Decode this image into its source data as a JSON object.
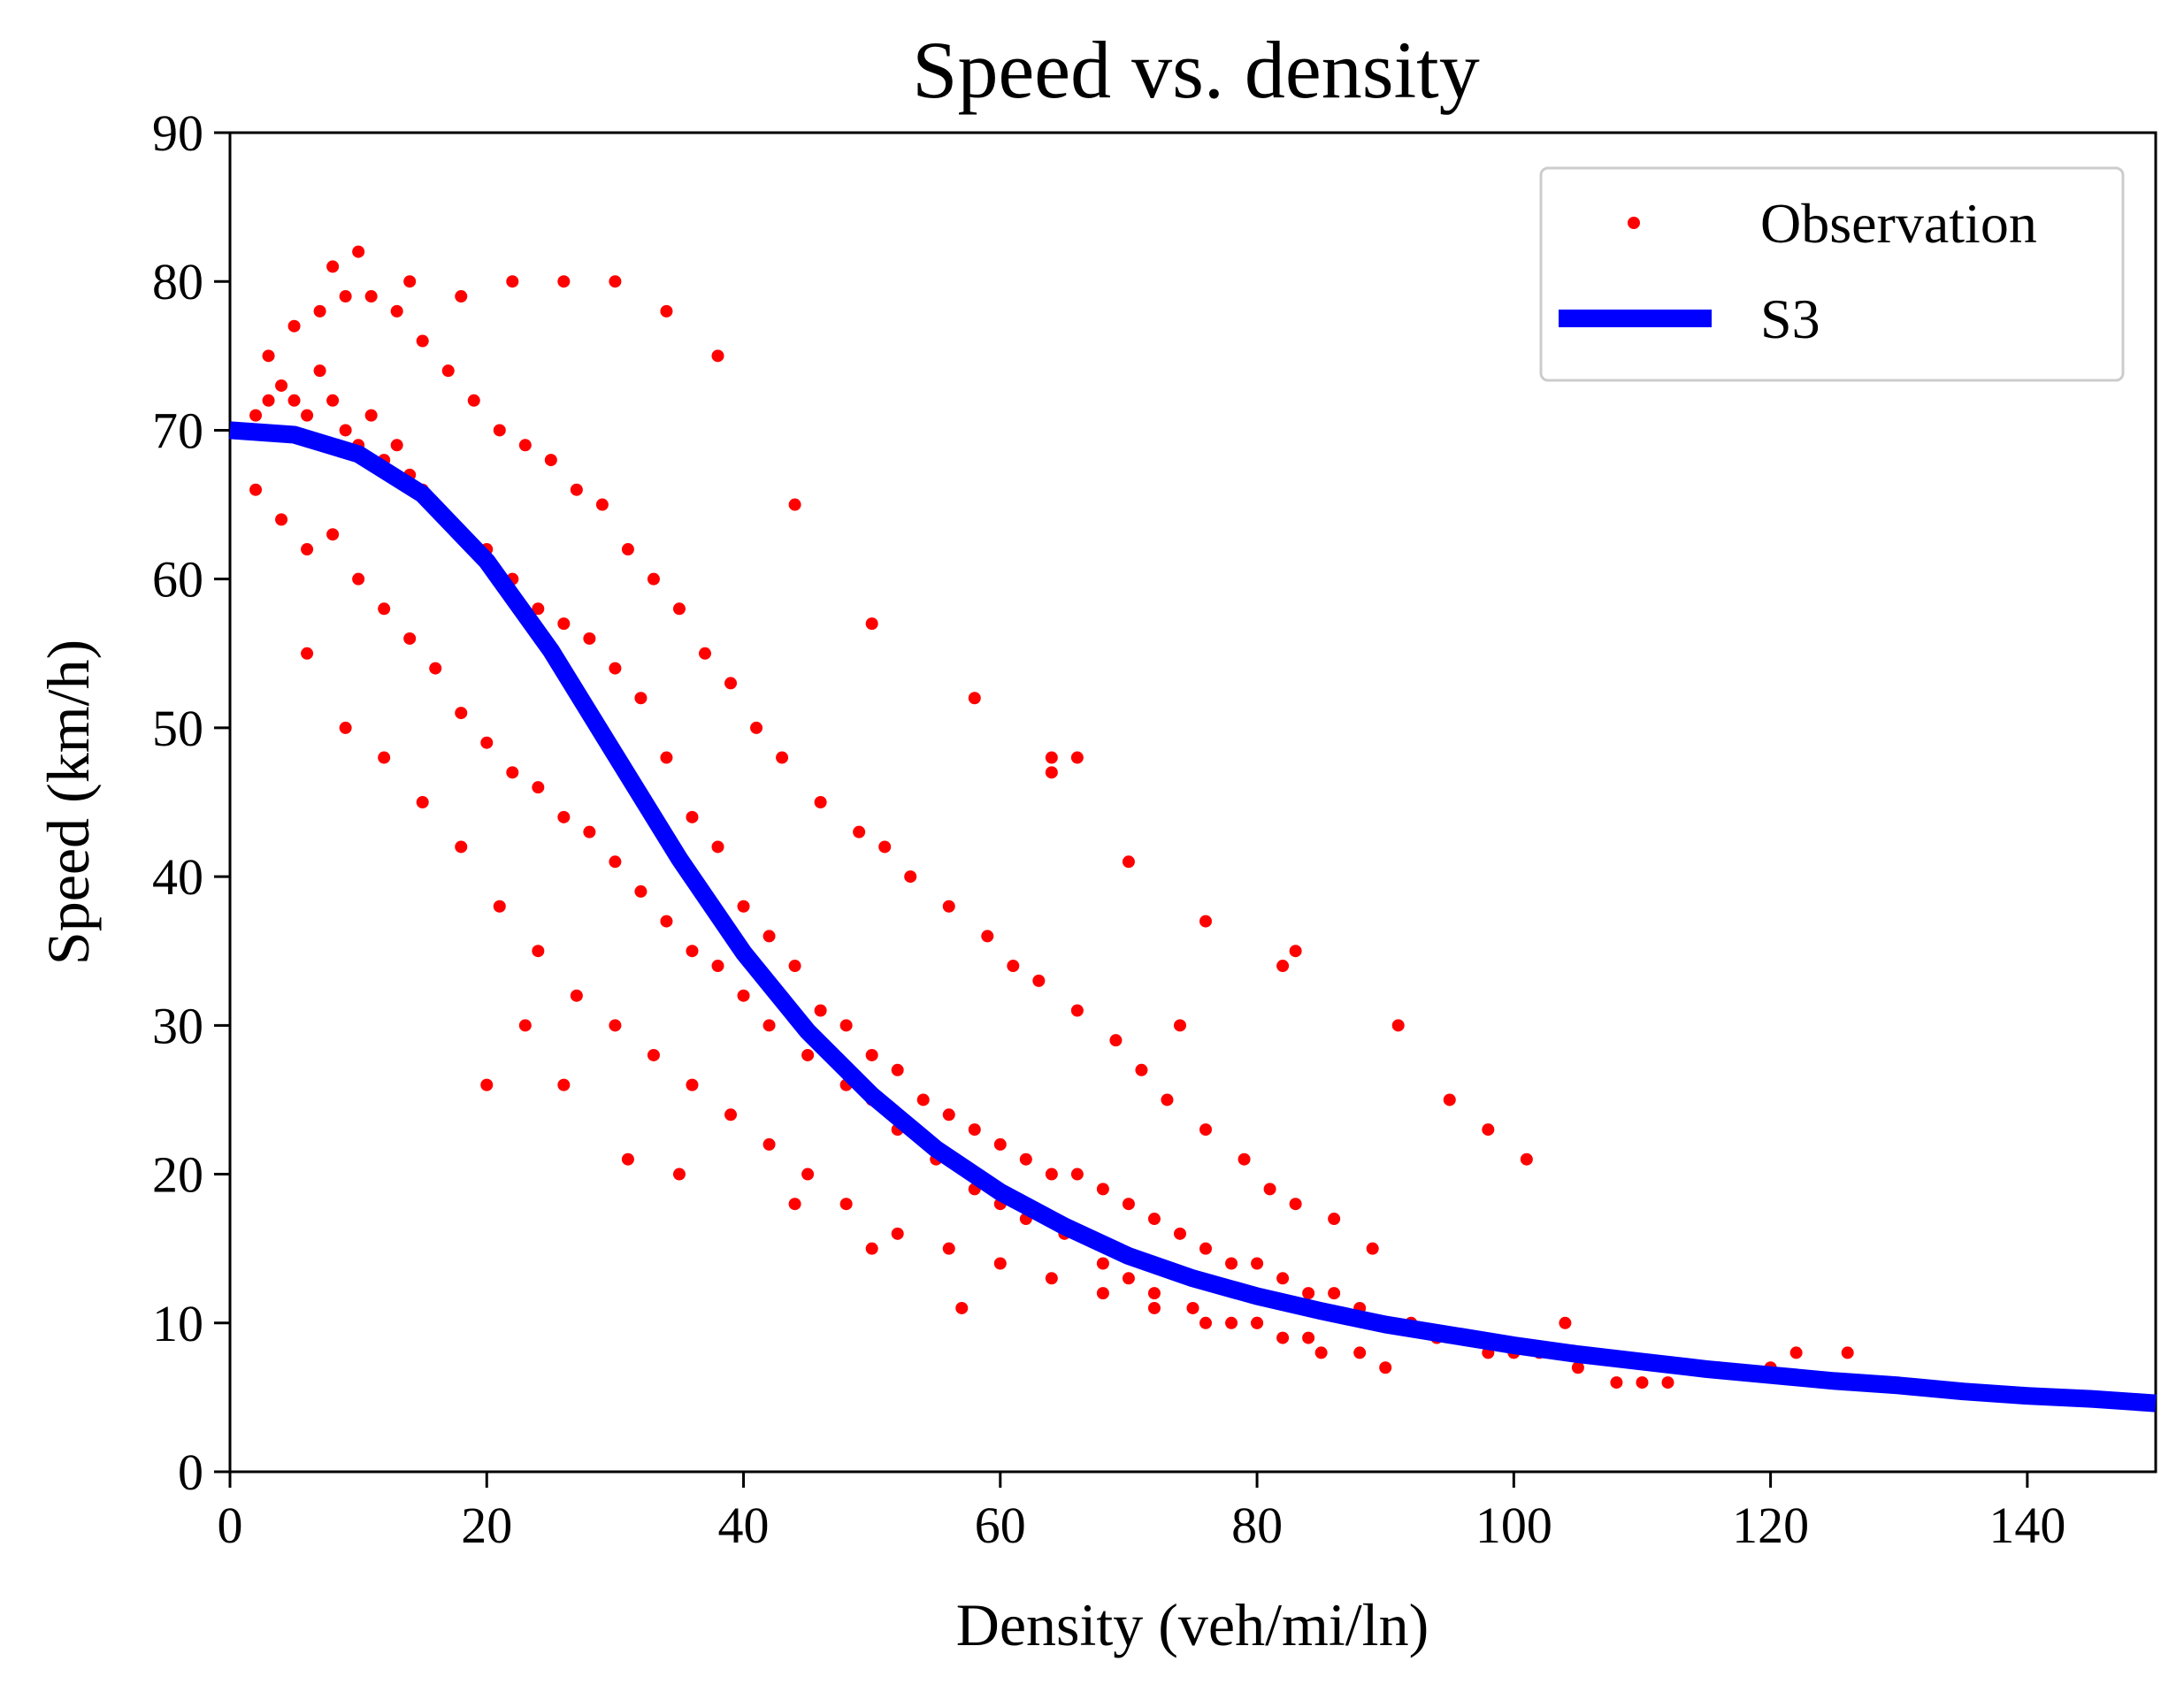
{
  "chart_data": {
    "type": "scatter",
    "title": "Speed vs. density",
    "xlabel": "Density (veh/mi/ln)",
    "ylabel": "Speed (km/h)",
    "xlim": [
      0,
      150
    ],
    "ylim": [
      0,
      90
    ],
    "x_ticks": [
      0,
      20,
      40,
      60,
      80,
      100,
      120,
      140
    ],
    "y_ticks": [
      0,
      10,
      20,
      30,
      40,
      50,
      60,
      70,
      80,
      90
    ],
    "grid": false,
    "legend_position": "top-right",
    "colors": {
      "observation": "#ff0000",
      "fit": "#0000ff"
    },
    "series": [
      {
        "name": "Observation",
        "kind": "scatter",
        "x": [
          1,
          2,
          3,
          4,
          5,
          6,
          7,
          8,
          9,
          10,
          11,
          12,
          13,
          14,
          15,
          16,
          17,
          18,
          19,
          20,
          22,
          24,
          26,
          28,
          30,
          32,
          34,
          36,
          38,
          40,
          42,
          44,
          46,
          48,
          50,
          52,
          54,
          56,
          58,
          60,
          62,
          64,
          66,
          68,
          70,
          72,
          74,
          76,
          78,
          80,
          82,
          84,
          86,
          88,
          90,
          92,
          94,
          96,
          98,
          100,
          102,
          105,
          108,
          112,
          116,
          120,
          124,
          128,
          2,
          4,
          6,
          8,
          10,
          12,
          14,
          16,
          18,
          20,
          22,
          24,
          26,
          28,
          30,
          32,
          34,
          36,
          38,
          40,
          42,
          45,
          48,
          50,
          52,
          55,
          58,
          60,
          62,
          65,
          68,
          70,
          72,
          75,
          78,
          80,
          82,
          85,
          88,
          90,
          3,
          5,
          7,
          9,
          11,
          13,
          15,
          17,
          19,
          21,
          23,
          25,
          27,
          29,
          31,
          33,
          35,
          37,
          39,
          41,
          43,
          46,
          49,
          51,
          53,
          56,
          59,
          61,
          63,
          66,
          69,
          71,
          73,
          76,
          79,
          81,
          83,
          86,
          89,
          6,
          9,
          12,
          15,
          18,
          21,
          24,
          27,
          30,
          33,
          36,
          39,
          42,
          45,
          48,
          52,
          56,
          60,
          64,
          68,
          72,
          76,
          80,
          84,
          8,
          10,
          14,
          18,
          22,
          26,
          30,
          34,
          38,
          44,
          50,
          58,
          64,
          70,
          76,
          82,
          20,
          23,
          26,
          31,
          35,
          44,
          50,
          57,
          64,
          66,
          74,
          83,
          91,
          95,
          98,
          101,
          104,
          110,
          115,
          122,
          126,
          129
        ],
        "y": [
          70,
          71,
          72,
          73,
          72,
          71,
          74,
          72,
          70,
          69,
          71,
          68,
          69,
          67,
          66,
          65,
          64,
          63,
          62,
          62,
          60,
          58,
          57,
          56,
          54,
          52,
          48,
          44,
          42,
          38,
          36,
          34,
          31,
          30,
          28,
          27,
          25,
          24,
          23,
          22,
          21,
          20,
          20,
          19,
          18,
          17,
          16,
          15,
          14,
          14,
          13,
          12,
          12,
          11,
          10,
          10,
          9,
          9,
          8,
          8,
          8,
          7,
          6,
          6,
          7,
          7,
          6,
          6,
          66,
          64,
          62,
          63,
          60,
          58,
          56,
          54,
          51,
          49,
          47,
          46,
          44,
          43,
          41,
          39,
          37,
          35,
          34,
          32,
          30,
          28,
          26,
          25,
          23,
          21,
          19,
          18,
          17,
          16,
          14,
          13,
          12,
          11,
          10,
          10,
          9,
          8,
          8,
          7,
          75,
          77,
          78,
          79,
          79,
          78,
          76,
          74,
          72,
          70,
          69,
          68,
          66,
          65,
          62,
          60,
          58,
          55,
          53,
          50,
          48,
          45,
          43,
          42,
          40,
          38,
          36,
          34,
          33,
          31,
          29,
          27,
          25,
          23,
          21,
          19,
          18,
          17,
          15,
          55,
          50,
          48,
          45,
          42,
          38,
          35,
          32,
          30,
          28,
          26,
          24,
          22,
          20,
          18,
          16,
          15,
          14,
          13,
          12,
          11,
          10,
          10,
          9,
          81,
          82,
          80,
          79,
          80,
          80,
          80,
          78,
          75,
          65,
          57,
          52,
          48,
          41,
          37,
          34,
          26,
          30,
          26,
          21,
          20,
          18,
          15,
          11,
          47,
          48,
          30,
          35,
          30,
          25,
          23,
          21,
          10,
          6,
          7,
          8,
          8,
          6
        ]
      },
      {
        "name": "S3",
        "kind": "line",
        "x": [
          0,
          5,
          10,
          15,
          20,
          25,
          30,
          35,
          40,
          45,
          50,
          55,
          60,
          65,
          70,
          75,
          80,
          85,
          90,
          95,
          100,
          105,
          110,
          115,
          120,
          125,
          130,
          135,
          140,
          145,
          150
        ],
        "y": [
          70,
          69.7,
          68.4,
          65.7,
          61.2,
          55.2,
          48.2,
          41.2,
          34.9,
          29.6,
          25.3,
          21.7,
          18.8,
          16.5,
          14.5,
          13.0,
          11.8,
          10.8,
          9.9,
          9.2,
          8.5,
          7.9,
          7.4,
          6.9,
          6.5,
          6.1,
          5.8,
          5.4,
          5.1,
          4.9,
          4.6
        ]
      }
    ]
  }
}
